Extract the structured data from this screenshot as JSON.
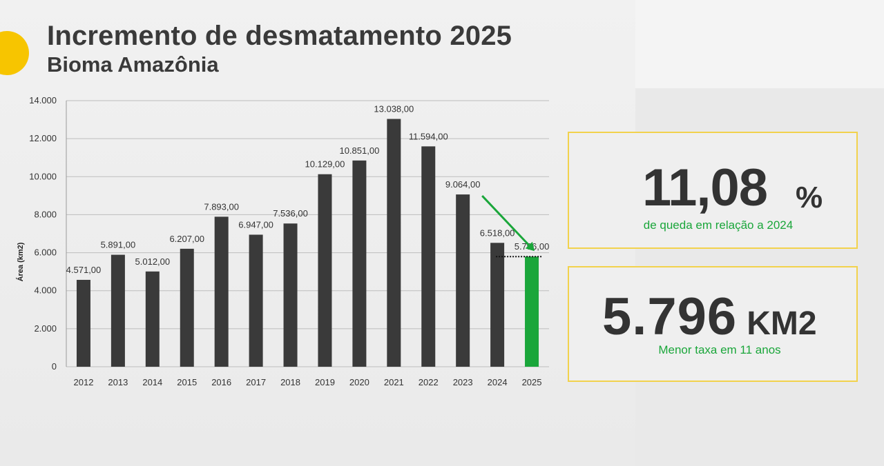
{
  "header": {
    "title": "Incremento de desmatamento 2025",
    "subtitle": "Bioma Amazônia"
  },
  "colors": {
    "bar": "#3a3a3a",
    "highlight_bar": "#1aa63a",
    "accent": "#f7c500",
    "box_border": "#f2d24c",
    "caption_green": "#1aa63a"
  },
  "chart_data": {
    "type": "bar",
    "title": "",
    "xlabel": "",
    "ylabel": "Área (km2)",
    "ylim": [
      0,
      14000
    ],
    "yticks": [
      "0",
      "2.000",
      "4.000",
      "6.000",
      "8.000",
      "10.000",
      "12.000",
      "14.000"
    ],
    "grid": true,
    "categories": [
      "2012",
      "2013",
      "2014",
      "2015",
      "2016",
      "2017",
      "2018",
      "2019",
      "2020",
      "2021",
      "2022",
      "2023",
      "2024",
      "2025"
    ],
    "values": [
      4571,
      5891,
      5012,
      6207,
      7893,
      6947,
      7536,
      10129,
      10851,
      13038,
      11594,
      9064,
      6518,
      5796
    ],
    "data_labels": [
      "4.571,00",
      "5.891,00",
      "5.012,00",
      "6.207,00",
      "7.893,00",
      "6.947,00",
      "7.536,00",
      "10.129,00",
      "10.851,00",
      "13.038,00",
      "11.594,00",
      "9.064,00",
      "6.518,00",
      "5.796,00"
    ],
    "highlight_index": 13,
    "annotations": [
      "green arrow from 2023 to 2025",
      "dotted reference line at 2025 value"
    ]
  },
  "stats": {
    "decrease": {
      "icon": "down-arrow-icon",
      "value": "11,08",
      "unit": "%",
      "caption": "de queda em relação a 2024"
    },
    "area": {
      "value": "5.796",
      "unit": "KM2",
      "caption": "Menor taxa em 11 anos"
    }
  }
}
